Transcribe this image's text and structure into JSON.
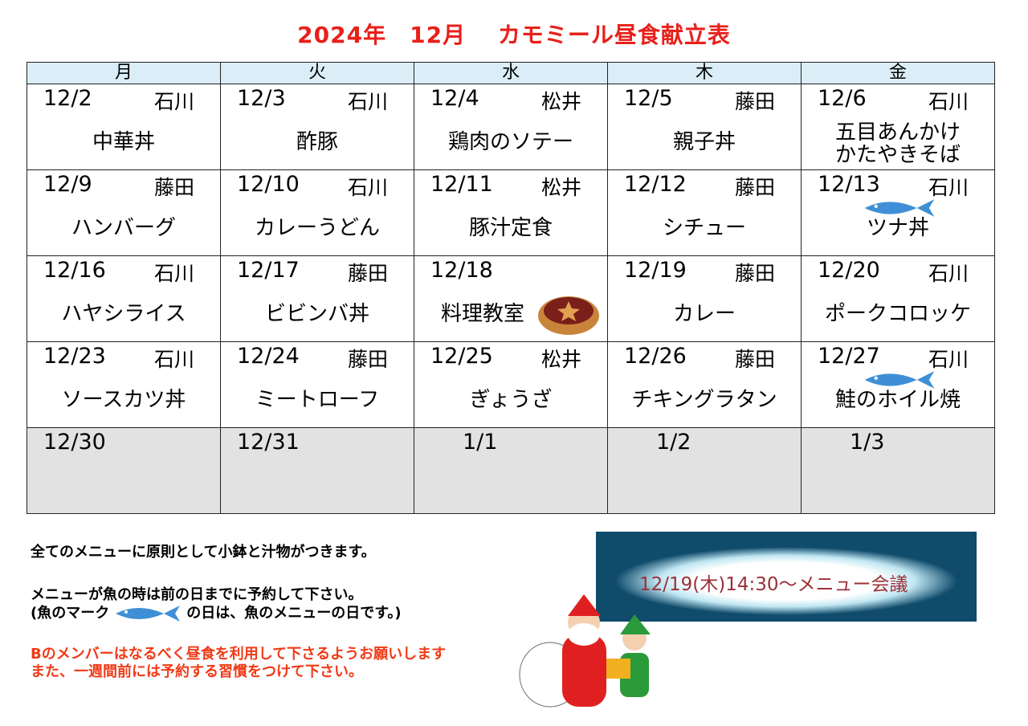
{
  "title": "2024年　12月　 カモミール昼食献立表",
  "weekdays": [
    "月",
    "火",
    "水",
    "木",
    "金"
  ],
  "weeks": [
    [
      {
        "date": "12/2",
        "cook": "石川",
        "menu": "中華丼"
      },
      {
        "date": "12/3",
        "cook": "石川",
        "menu": "酢豚"
      },
      {
        "date": "12/4",
        "cook": "松井",
        "menu": "鶏肉のソテー"
      },
      {
        "date": "12/5",
        "cook": "藤田",
        "menu": "親子丼"
      },
      {
        "date": "12/6",
        "cook": "石川",
        "menu": "五目あんかけ\nかたやきそば"
      }
    ],
    [
      {
        "date": "12/9",
        "cook": "藤田",
        "menu": "ハンバーグ"
      },
      {
        "date": "12/10",
        "cook": "石川",
        "menu": "カレーうどん"
      },
      {
        "date": "12/11",
        "cook": "松井",
        "menu": "豚汁定食"
      },
      {
        "date": "12/12",
        "cook": "藤田",
        "menu": "シチュー"
      },
      {
        "date": "12/13",
        "cook": "石川",
        "menu": "ツナ丼",
        "icon": "fish"
      }
    ],
    [
      {
        "date": "12/16",
        "cook": "石川",
        "menu": "ハヤシライス"
      },
      {
        "date": "12/17",
        "cook": "藤田",
        "menu": "ビビンバ丼"
      },
      {
        "date": "12/18",
        "cook": "",
        "menu": "料理教室",
        "icon": "tart"
      },
      {
        "date": "12/19",
        "cook": "藤田",
        "menu": "カレー"
      },
      {
        "date": "12/20",
        "cook": "石川",
        "menu": "ポークコロッケ"
      }
    ],
    [
      {
        "date": "12/23",
        "cook": "石川",
        "menu": "ソースカツ丼"
      },
      {
        "date": "12/24",
        "cook": "藤田",
        "menu": "ミートローフ"
      },
      {
        "date": "12/25",
        "cook": "松井",
        "menu": "ぎょうざ"
      },
      {
        "date": "12/26",
        "cook": "藤田",
        "menu": "チキングラタン"
      },
      {
        "date": "12/27",
        "cook": "石川",
        "menu": "鮭のホイル焼",
        "icon": "fish"
      }
    ],
    [
      {
        "date": "12/30",
        "grey": true
      },
      {
        "date": "12/31",
        "grey": true
      },
      {
        "date": "1/1",
        "grey": true
      },
      {
        "date": "1/2",
        "grey": true
      },
      {
        "date": "1/3",
        "grey": true
      }
    ]
  ],
  "notes": {
    "line1": "全てのメニューに原則として小鉢と汁物がつきます。",
    "line2": "メニューが魚の時は前の日までに予約して下さい。",
    "line3a": "(魚のマーク",
    "line3b": "の日は、魚のメニューの日です。)",
    "red1": "Bのメンバーはなるべく昼食を利用して下さるようお願いします",
    "red2": "また、一週間前には予約する習慣をつけて下さい。"
  },
  "banner": "12/19(木)14:30～メニュー会議",
  "colors": {
    "title": "#e8201a",
    "header": "#dbeef7",
    "fish": "#3f8fd6",
    "red_note": "#f03a17"
  }
}
